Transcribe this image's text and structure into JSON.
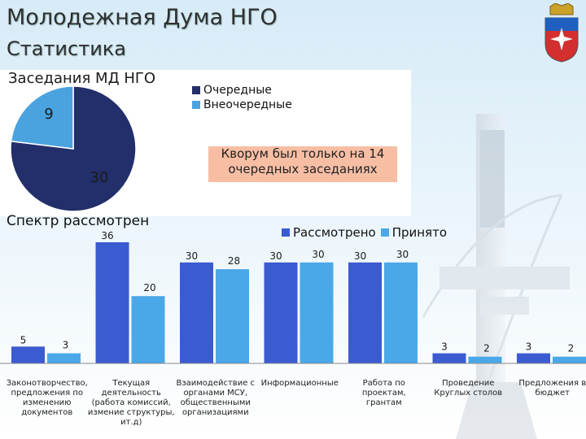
{
  "header": {
    "title": "Молодежная Дума НГО",
    "subtitle": "Статистика"
  },
  "pie_section": {
    "title": "Заседания МД НГО",
    "note": "Кворум был только на 14 очередных заседаниях",
    "labels": [
      "30",
      "9"
    ]
  },
  "bar_section": {
    "title": "Спектр рассмотрен"
  },
  "colors": {
    "dark_navy": "#232f6b",
    "light_blue": "#4aa3df",
    "bar_blue": "#3b5bd0",
    "bar_cyan": "#4aa8e8",
    "note_bg": "#f7bea4"
  },
  "chart_data": [
    {
      "type": "pie",
      "series": [
        {
          "name": "Очередные",
          "value": 30
        },
        {
          "name": "Внеочередные",
          "value": 9
        }
      ],
      "legend": [
        "Очередные",
        "Внеочередные"
      ],
      "legend_position": "top-right"
    },
    {
      "type": "bar",
      "categories": [
        "Законотворчество, предложения по изменению документов",
        "Текущая деятельность (работа комиссий, измение структуры, ит.д)",
        "Взаимодействие с органами МСУ, общественными организациями",
        "Информационные",
        "Работа по проектам, грантам",
        "Проведение Круглых столов",
        "Предложения в бюджет"
      ],
      "category_lines": [
        [
          "Законотворчество,",
          "предложения по",
          "изменению",
          "документов"
        ],
        [
          "Текущая",
          "деятельность",
          "(работа комиссий,",
          "измение структуры,",
          "ит.д)"
        ],
        [
          "Взаимодействие с",
          "органами МСУ,",
          "общественными",
          "организациями"
        ],
        [
          "Информационные"
        ],
        [
          "Работа по проектам,",
          "грантам"
        ],
        [
          "Проведение",
          "Круглых столов"
        ],
        [
          "Предложения в",
          "бюджет"
        ]
      ],
      "series": [
        {
          "name": "Рассмотрено",
          "values": [
            5,
            36,
            30,
            30,
            30,
            3,
            3
          ]
        },
        {
          "name": "Принято",
          "values": [
            3,
            20,
            28,
            30,
            30,
            2,
            2
          ]
        }
      ],
      "legend_position": "top-right",
      "ylim": [
        0,
        36
      ]
    }
  ]
}
